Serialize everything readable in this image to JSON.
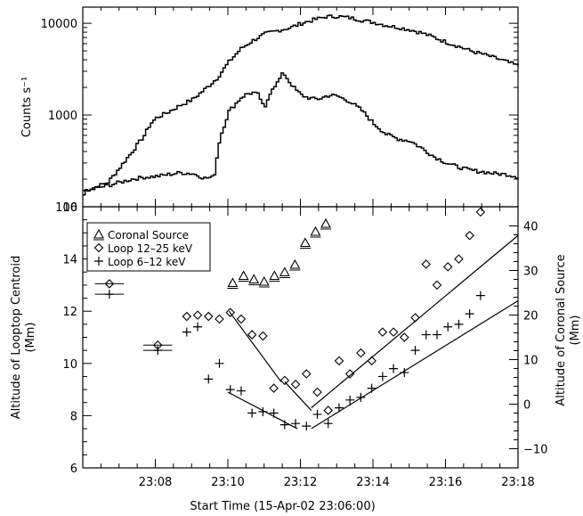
{
  "chart_data": [
    {
      "type": "line",
      "ylabel": "Counts s⁻¹",
      "yscale": "log",
      "ylim": [
        100,
        15000
      ],
      "xlim": [
        360,
        1080
      ],
      "yticks": [
        {
          "value": 100,
          "label": "100"
        },
        {
          "value": 1000,
          "label": "1000"
        },
        {
          "value": 10000,
          "label": "10000"
        }
      ],
      "series": [
        {
          "color": "#000000",
          "x": [
            360,
            380,
            400,
            420,
            440,
            460,
            470,
            480,
            500,
            520,
            540,
            560,
            580,
            600,
            620,
            640,
            660,
            680,
            700,
            720,
            740,
            760,
            780,
            800,
            820,
            840,
            860,
            880,
            900,
            920,
            940,
            960,
            980,
            1000,
            1020,
            1040,
            1060,
            1080
          ],
          "y": [
            150,
            165,
            185,
            270,
            400,
            600,
            800,
            930,
            1080,
            1280,
            1480,
            1900,
            2500,
            3800,
            5300,
            6500,
            7700,
            8300,
            8900,
            10000,
            10900,
            11800,
            11900,
            11500,
            10800,
            10200,
            9500,
            9000,
            8500,
            7800,
            7000,
            6200,
            5600,
            5000,
            4600,
            4200,
            3800,
            3400
          ]
        },
        {
          "color": "#000000",
          "x": [
            360,
            380,
            400,
            420,
            440,
            460,
            480,
            500,
            520,
            540,
            560,
            575,
            585,
            600,
            610,
            620,
            630,
            640,
            650,
            655,
            660,
            665,
            670,
            680,
            690,
            700,
            710,
            720,
            730,
            740,
            750,
            760,
            770,
            780,
            800,
            820,
            840,
            860,
            880,
            900,
            920,
            940,
            960,
            980,
            1000,
            1020,
            1040,
            1060,
            1080
          ],
          "y": [
            140,
            160,
            170,
            185,
            200,
            210,
            215,
            225,
            235,
            230,
            205,
            210,
            560,
            1100,
            1300,
            1550,
            1700,
            1750,
            1650,
            1300,
            1200,
            1550,
            1900,
            2250,
            2900,
            2300,
            1900,
            1650,
            1550,
            1500,
            1500,
            1600,
            1650,
            1600,
            1400,
            1120,
            800,
            620,
            550,
            520,
            430,
            350,
            300,
            270,
            250,
            240,
            230,
            225,
            210
          ]
        }
      ]
    },
    {
      "type": "scatter",
      "xlabel": "Start Time (15-Apr-02 23:06:00)",
      "ylabel": "Altitude of Looptop Centroid (Mm)",
      "ylabel_lines": [
        "Altitude of Looptop Centroid",
        "(Mm)"
      ],
      "y2label": "Altitude of Coronal Source (Mm)",
      "y2label_lines": [
        "Altitude of Coronal Source",
        "(Mm)"
      ],
      "xlim": [
        360,
        1080
      ],
      "ylim": [
        6,
        16
      ],
      "y2lim": [
        -14.3,
        44.3
      ],
      "xticks": [
        {
          "value": 480,
          "label": "23:08"
        },
        {
          "value": 600,
          "label": "23:10"
        },
        {
          "value": 720,
          "label": "23:12"
        },
        {
          "value": 840,
          "label": "23:14"
        },
        {
          "value": 960,
          "label": "23:16"
        },
        {
          "value": 1080,
          "label": "23:18"
        }
      ],
      "yticks": [
        {
          "value": 6,
          "label": "6"
        },
        {
          "value": 8,
          "label": "8"
        },
        {
          "value": 10,
          "label": "10"
        },
        {
          "value": 12,
          "label": "12"
        },
        {
          "value": 14,
          "label": "14"
        },
        {
          "value": 16,
          "label": "16"
        }
      ],
      "y2ticks": [
        {
          "value": -10,
          "label": "−10"
        },
        {
          "value": 0,
          "label": "0"
        },
        {
          "value": 10,
          "label": "10"
        },
        {
          "value": 20,
          "label": "20"
        },
        {
          "value": 30,
          "label": "30"
        },
        {
          "value": 40,
          "label": "40"
        }
      ],
      "legend": {
        "position": "top-left",
        "entries": [
          {
            "marker": "triangle",
            "label": "Coronal Source"
          },
          {
            "marker": "diamond",
            "label": "Loop 12–25 keV"
          },
          {
            "marker": "plus",
            "label": "Loop 6–12 keV"
          }
        ]
      },
      "series": [
        {
          "name": "Coronal Source",
          "marker": "triangle",
          "axis": "right",
          "points": [
            {
              "x": 608,
              "y": 27.2
            },
            {
              "x": 626,
              "y": 28.8
            },
            {
              "x": 643,
              "y": 28.0
            },
            {
              "x": 660,
              "y": 27.5
            },
            {
              "x": 677,
              "y": 28.8
            },
            {
              "x": 694,
              "y": 29.6
            },
            {
              "x": 711,
              "y": 31.3
            },
            {
              "x": 728,
              "y": 36.2
            },
            {
              "x": 745,
              "y": 38.7
            },
            {
              "x": 762,
              "y": 40.5
            }
          ]
        },
        {
          "name": "Loop 12–25 keV",
          "marker": "diamond",
          "axis": "left",
          "points": [
            {
              "x": 404,
              "y": 13.05,
              "xerr": 24
            },
            {
              "x": 484,
              "y": 10.7,
              "xerr": 24
            },
            {
              "x": 532,
              "y": 11.8
            },
            {
              "x": 550,
              "y": 11.85
            },
            {
              "x": 568,
              "y": 11.8
            },
            {
              "x": 586,
              "y": 11.7
            },
            {
              "x": 604,
              "y": 11.95
            },
            {
              "x": 622,
              "y": 11.7
            },
            {
              "x": 640,
              "y": 11.1
            },
            {
              "x": 658,
              "y": 11.05
            },
            {
              "x": 676,
              "y": 9.05
            },
            {
              "x": 694,
              "y": 9.35
            },
            {
              "x": 712,
              "y": 9.2
            },
            {
              "x": 730,
              "y": 9.6
            },
            {
              "x": 748,
              "y": 8.9
            },
            {
              "x": 766,
              "y": 8.2
            },
            {
              "x": 784,
              "y": 10.1
            },
            {
              "x": 802,
              "y": 9.6
            },
            {
              "x": 820,
              "y": 10.4
            },
            {
              "x": 838,
              "y": 10.1
            },
            {
              "x": 856,
              "y": 11.2
            },
            {
              "x": 874,
              "y": 11.2
            },
            {
              "x": 892,
              "y": 11.0
            },
            {
              "x": 910,
              "y": 11.75
            },
            {
              "x": 928,
              "y": 13.8
            },
            {
              "x": 946,
              "y": 13.0
            },
            {
              "x": 964,
              "y": 13.7
            },
            {
              "x": 982,
              "y": 14.0
            },
            {
              "x": 1000,
              "y": 14.9
            },
            {
              "x": 1018,
              "y": 15.8
            }
          ]
        },
        {
          "name": "Loop 6–12 keV",
          "marker": "plus",
          "axis": "left",
          "points": [
            {
              "x": 404,
              "y": 12.65,
              "xerr": 24
            },
            {
              "x": 484,
              "y": 10.5,
              "xerr": 24
            },
            {
              "x": 532,
              "y": 11.2
            },
            {
              "x": 550,
              "y": 11.4
            },
            {
              "x": 568,
              "y": 9.4
            },
            {
              "x": 586,
              "y": 10.0
            },
            {
              "x": 604,
              "y": 9.0
            },
            {
              "x": 622,
              "y": 8.95
            },
            {
              "x": 640,
              "y": 8.1
            },
            {
              "x": 658,
              "y": 8.15
            },
            {
              "x": 676,
              "y": 8.1
            },
            {
              "x": 694,
              "y": 7.65
            },
            {
              "x": 712,
              "y": 7.7
            },
            {
              "x": 730,
              "y": 7.6
            },
            {
              "x": 748,
              "y": 8.05
            },
            {
              "x": 766,
              "y": 7.7
            },
            {
              "x": 784,
              "y": 8.3
            },
            {
              "x": 802,
              "y": 8.6
            },
            {
              "x": 820,
              "y": 8.7
            },
            {
              "x": 838,
              "y": 9.05
            },
            {
              "x": 856,
              "y": 9.5
            },
            {
              "x": 874,
              "y": 9.8
            },
            {
              "x": 892,
              "y": 9.65
            },
            {
              "x": 910,
              "y": 10.5
            },
            {
              "x": 928,
              "y": 11.1
            },
            {
              "x": 946,
              "y": 11.1
            },
            {
              "x": 964,
              "y": 11.4
            },
            {
              "x": 982,
              "y": 11.5
            },
            {
              "x": 1000,
              "y": 11.9
            },
            {
              "x": 1018,
              "y": 12.6
            }
          ]
        }
      ],
      "fit_lines": [
        {
          "x": [
            602,
            688
          ],
          "y": [
            12.0,
            9.3
          ]
        },
        {
          "x": [
            694,
            738
          ],
          "y": [
            9.3,
            8.2
          ]
        },
        {
          "x": [
            738,
            1080
          ],
          "y": [
            8.3,
            14.9
          ]
        },
        {
          "x": [
            600,
            715
          ],
          "y": [
            8.9,
            7.5
          ]
        },
        {
          "x": [
            738,
            1080
          ],
          "y": [
            7.5,
            12.4
          ]
        }
      ]
    }
  ]
}
